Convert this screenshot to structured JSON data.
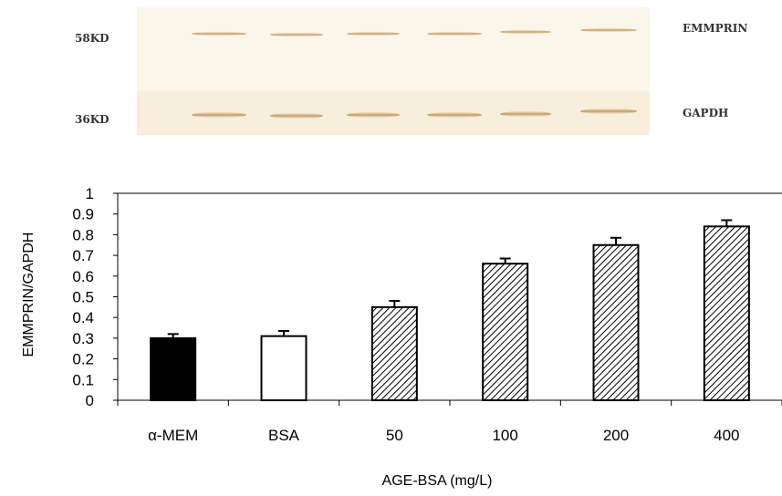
{
  "blot": {
    "marker_top": "58KD",
    "marker_bottom": "36KD",
    "label_top": "EMMPRIN",
    "label_bottom": "GAPDH",
    "band_color": "#c9a46a",
    "background_color": "#fbf6ea"
  },
  "chart_data": {
    "type": "bar",
    "title": "",
    "xlabel": "AGE-BSA (mg/L)",
    "ylabel": "EMMPRIN/GAPDH",
    "ylim": [
      0,
      1
    ],
    "yticks": [
      "0",
      "0.1",
      "0.2",
      "0.3",
      "0.4",
      "0.5",
      "0.6",
      "0.7",
      "0.8",
      "0.9",
      "1"
    ],
    "categories": [
      "α-MEM",
      "BSA",
      "50",
      "100",
      "200",
      "400"
    ],
    "values": [
      0.3,
      0.31,
      0.45,
      0.66,
      0.75,
      0.84
    ],
    "errors": [
      0.02,
      0.025,
      0.03,
      0.025,
      0.035,
      0.03
    ],
    "fills": [
      "solid-black",
      "white",
      "hatched",
      "hatched",
      "hatched",
      "hatched"
    ],
    "grid": false,
    "legend": "none"
  }
}
